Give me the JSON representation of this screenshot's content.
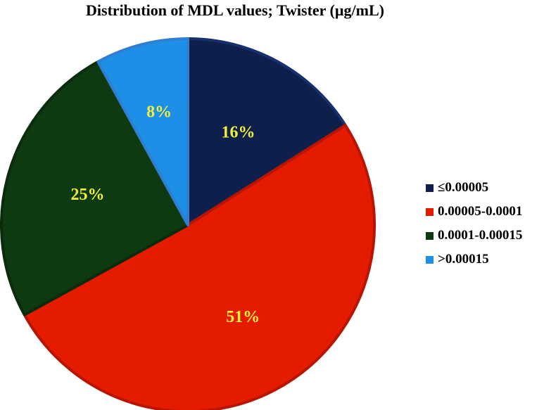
{
  "chart_data": {
    "type": "pie",
    "title": "Distribution of MDL values; Twister (µg/mL)",
    "categories": [
      "≤0.00005",
      "0.00005-0.0001",
      "0.0001-0.00015",
      ">0.00015"
    ],
    "values": [
      16,
      51,
      25,
      8
    ],
    "data_labels": [
      "16%",
      "51%",
      "25%",
      "8%"
    ],
    "colors": [
      "#0f1f4b",
      "#e51b00",
      "#0d3a10",
      "#1e8fe6"
    ],
    "edge_colors": [
      "#16306e",
      "#b81500",
      "#0a2b0c",
      "#2f7fd0"
    ],
    "label_color": "#f0f03a",
    "legend_position": "right",
    "start_angle_deg": 0,
    "direction": "clockwise"
  }
}
